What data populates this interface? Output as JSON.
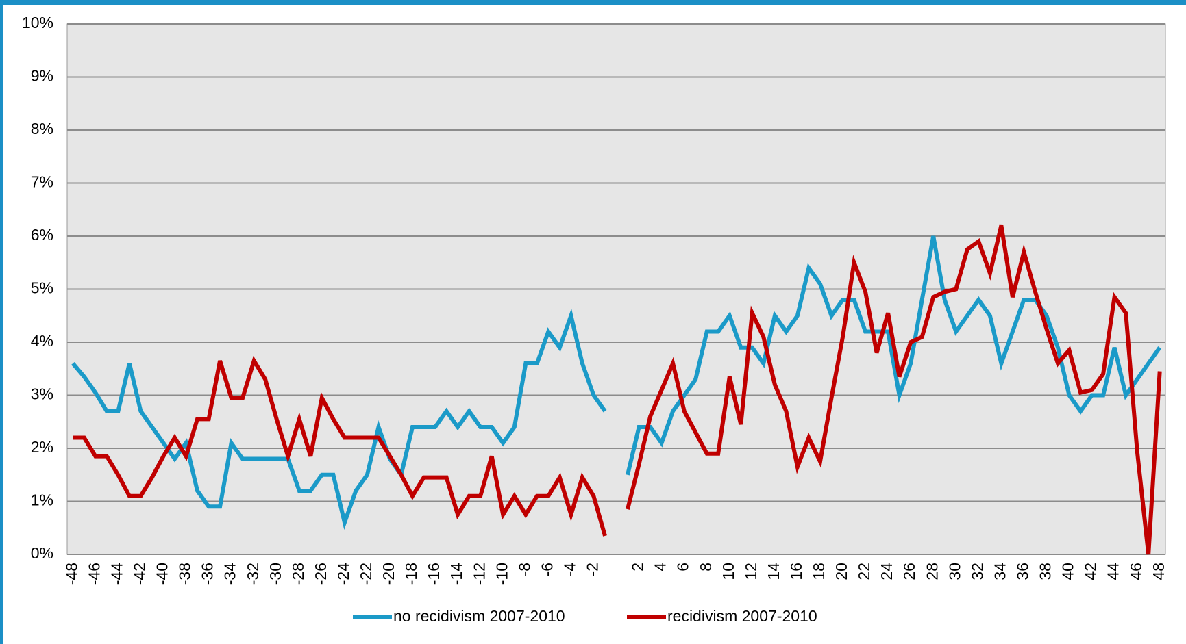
{
  "chart_data": {
    "type": "line",
    "categories": [
      "-48",
      null,
      "-46",
      null,
      "-44",
      null,
      "-42",
      null,
      "-40",
      null,
      "-38",
      null,
      "-36",
      null,
      "-34",
      null,
      "-32",
      null,
      "-30",
      null,
      "-28",
      null,
      "-26",
      null,
      "-24",
      null,
      "-22",
      null,
      "-20",
      null,
      "-18",
      null,
      "-16",
      null,
      "-14",
      null,
      "-12",
      null,
      "-10",
      null,
      "-8",
      null,
      "-6",
      null,
      "-4",
      null,
      "-2",
      null,
      null,
      null,
      "2",
      null,
      "4",
      null,
      "6",
      null,
      "8",
      null,
      "10",
      null,
      "12",
      null,
      "14",
      null,
      "16",
      null,
      "18",
      null,
      "20",
      null,
      "22",
      null,
      "24",
      null,
      "26",
      null,
      "28",
      null,
      "30",
      null,
      "32",
      null,
      "34",
      null,
      "36",
      null,
      "38",
      null,
      "40",
      null,
      "42",
      null,
      "44",
      null,
      "46",
      null,
      "48"
    ],
    "series": [
      {
        "name": "no recidivism 2007-2010",
        "color": "#1b9ac8",
        "values": [
          3.6,
          3.35,
          3.05,
          2.7,
          2.7,
          3.6,
          2.7,
          2.4,
          2.1,
          1.8,
          2.1,
          1.2,
          0.9,
          0.9,
          2.1,
          1.8,
          1.8,
          1.8,
          1.8,
          1.8,
          1.2,
          1.2,
          1.5,
          1.5,
          0.6,
          1.2,
          1.5,
          2.4,
          1.8,
          1.5,
          2.4,
          2.4,
          2.4,
          2.7,
          2.4,
          2.7,
          2.4,
          2.4,
          2.1,
          2.4,
          3.6,
          3.6,
          4.2,
          3.9,
          4.5,
          3.6,
          3.0,
          2.7,
          null,
          1.5,
          2.4,
          2.4,
          2.1,
          2.7,
          3.0,
          3.3,
          4.2,
          4.2,
          4.5,
          3.9,
          3.9,
          3.6,
          4.5,
          4.2,
          4.5,
          5.4,
          5.1,
          4.5,
          4.8,
          4.8,
          4.2,
          4.2,
          4.2,
          3.0,
          3.6,
          4.8,
          6.0,
          4.8,
          4.2,
          4.5,
          4.8,
          4.5,
          3.6,
          4.2,
          4.8,
          4.8,
          4.5,
          3.9,
          3.0,
          2.7,
          3.0,
          3.0,
          3.9,
          3.0,
          3.3,
          3.6,
          3.9
        ]
      },
      {
        "name": "recidivism 2007-2010",
        "color": "#c00000",
        "values": [
          2.2,
          2.2,
          1.85,
          1.85,
          1.5,
          1.1,
          1.1,
          1.45,
          1.85,
          2.2,
          1.85,
          2.55,
          2.55,
          3.65,
          2.95,
          2.95,
          3.65,
          3.3,
          2.55,
          1.85,
          2.55,
          1.85,
          2.95,
          2.55,
          2.2,
          2.2,
          2.2,
          2.2,
          1.85,
          1.5,
          1.1,
          1.45,
          1.45,
          1.45,
          0.75,
          1.1,
          1.1,
          1.85,
          0.75,
          1.1,
          0.75,
          1.1,
          1.1,
          1.45,
          0.75,
          1.45,
          1.1,
          0.35,
          null,
          0.85,
          1.7,
          2.6,
          3.1,
          3.6,
          2.7,
          2.3,
          1.9,
          1.9,
          3.35,
          2.45,
          4.55,
          4.1,
          3.2,
          2.7,
          1.65,
          2.2,
          1.75,
          2.95,
          4.1,
          5.5,
          4.95,
          3.8,
          4.55,
          3.35,
          4.0,
          4.1,
          4.85,
          4.95,
          5.0,
          5.75,
          5.9,
          5.3,
          6.2,
          4.85,
          5.7,
          4.95,
          4.25,
          3.6,
          3.85,
          3.05,
          3.1,
          3.4,
          4.85,
          4.55,
          1.95,
          0.0,
          3.45
        ]
      }
    ],
    "ylim": [
      0,
      10
    ],
    "yticks": [
      {
        "value": 0,
        "label": "0%"
      },
      {
        "value": 1,
        "label": "1%"
      },
      {
        "value": 2,
        "label": "2%"
      },
      {
        "value": 3,
        "label": "3%"
      },
      {
        "value": 4,
        "label": "4%"
      },
      {
        "value": 5,
        "label": "5%"
      },
      {
        "value": 6,
        "label": "6%"
      },
      {
        "value": 7,
        "label": "7%"
      },
      {
        "value": 8,
        "label": "8%"
      },
      {
        "value": 9,
        "label": "9%"
      },
      {
        "value": 10,
        "label": "10%"
      }
    ],
    "grid": true,
    "legend": "bottom"
  }
}
